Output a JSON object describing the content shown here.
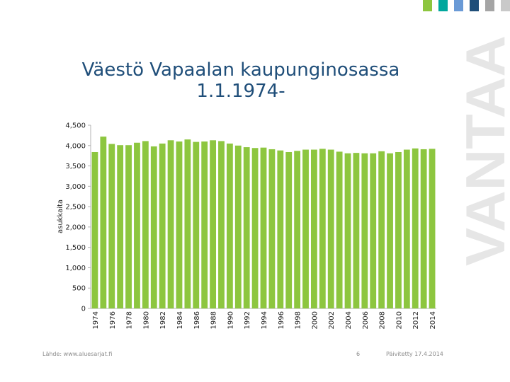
{
  "slide": {
    "title_line1": "Väestö Vapaalan kaupunginosassa",
    "title_line2": "1.1.1974-",
    "brand": "VANTAA",
    "source": "Lähde: www.aluesarjat.fi",
    "page_number": "6",
    "updated": "Päivitetty 17.4.2014",
    "strip_colors": [
      "#8dc63f",
      "#00a79d",
      "#6a9ad6",
      "#1f4e79",
      "#a5a5a5",
      "#c9c9c9"
    ]
  },
  "chart_data": {
    "type": "bar",
    "title": "",
    "xlabel": "",
    "ylabel": "asukkaita",
    "ylim": [
      0,
      4500
    ],
    "yticks": [
      0,
      500,
      1000,
      1500,
      2000,
      2500,
      3000,
      3500,
      4000,
      4500
    ],
    "ytick_labels": [
      "0",
      "500",
      "1,000",
      "1,500",
      "2,000",
      "2,500",
      "3,000",
      "3,500",
      "4,000",
      "4,500"
    ],
    "bar_color": "#8dc63f",
    "grid": false,
    "categories": [
      "1974",
      "1975",
      "1976",
      "1977",
      "1978",
      "1979",
      "1980",
      "1981",
      "1982",
      "1983",
      "1984",
      "1985",
      "1986",
      "1987",
      "1988",
      "1989",
      "1990",
      "1991",
      "1992",
      "1993",
      "1994",
      "1995",
      "1996",
      "1997",
      "1998",
      "1999",
      "2000",
      "2001",
      "2002",
      "2003",
      "2004",
      "2005",
      "2006",
      "2007",
      "2008",
      "2009",
      "2010",
      "2011",
      "2012",
      "2013",
      "2014"
    ],
    "xtick_labels": [
      "1974",
      "",
      "1976",
      "",
      "1978",
      "",
      "1980",
      "",
      "1982",
      "",
      "1984",
      "",
      "1986",
      "",
      "1988",
      "",
      "1990",
      "",
      "1992",
      "",
      "1994",
      "",
      "1996",
      "",
      "1998",
      "",
      "2000",
      "",
      "2002",
      "",
      "2004",
      "",
      "2006",
      "",
      "2008",
      "",
      "2010",
      "",
      "2012",
      "",
      "2014"
    ],
    "values": [
      3840,
      4220,
      4040,
      4010,
      4010,
      4070,
      4110,
      3980,
      4050,
      4130,
      4100,
      4150,
      4090,
      4100,
      4130,
      4110,
      4050,
      4000,
      3960,
      3940,
      3950,
      3910,
      3880,
      3840,
      3870,
      3900,
      3900,
      3920,
      3900,
      3850,
      3810,
      3820,
      3810,
      3810,
      3860,
      3810,
      3840,
      3900,
      3930,
      3910,
      3920
    ]
  }
}
